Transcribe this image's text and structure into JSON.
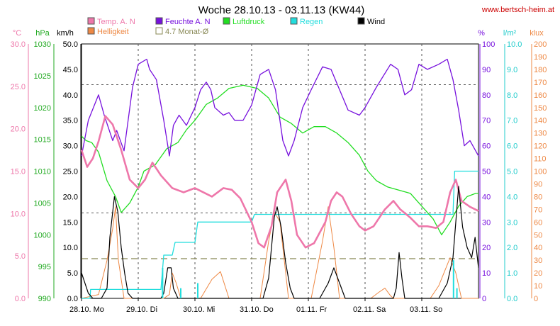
{
  "chart_data": {
    "type": "line",
    "title": "Woche 28.10.13 - 03.11.13 (KW44)",
    "source": "www.bertsch-heim.at",
    "legend": [
      {
        "key": "temp",
        "label": "Temp. A. N",
        "color": "#ee77aa"
      },
      {
        "key": "hell",
        "label": "Helligkeit",
        "color": "#ee8844"
      },
      {
        "key": "feuchte",
        "label": "Feuchte A. N",
        "color": "#7711dd"
      },
      {
        "key": "monat",
        "label": "4.7 Monat-Ø",
        "color": "#888855"
      },
      {
        "key": "luft",
        "label": "Luftdruck",
        "color": "#22dd22"
      },
      {
        "key": "regen",
        "label": "Regen",
        "color": "#22dddd"
      },
      {
        "key": "wind",
        "label": "Wind",
        "color": "#000000"
      }
    ],
    "axes": {
      "temp": {
        "unit": "°C",
        "min": 0,
        "max": 30,
        "step": 5,
        "color": "#ee77aa"
      },
      "luft": {
        "unit": "hPa",
        "min": 990,
        "max": 1030,
        "step": 5,
        "color": "#22aa22"
      },
      "wind": {
        "unit": "km/h",
        "min": 0,
        "max": 50,
        "step": 5,
        "color": "#000000"
      },
      "feuchte": {
        "unit": "%",
        "min": 0,
        "max": 100,
        "step": 10,
        "color": "#7711dd"
      },
      "regen": {
        "unit": "l/m²",
        "min": 0,
        "max": 10,
        "step": 1,
        "color": "#22cccc"
      },
      "hell": {
        "unit": "klux",
        "min": 0,
        "max": 200,
        "step": 10,
        "color": "#ee8844"
      }
    },
    "x_labels": [
      "28.10. Mo",
      "29.10. Di",
      "30.10. Mi",
      "31.10. Do",
      "01.11. Fr",
      "02.11. Sa",
      "03.11. So"
    ],
    "x_range_days": [
      0,
      7
    ],
    "reference_lines_wind": [
      42,
      16.8
    ],
    "monat_avg_wind": 7.8,
    "series": {
      "temp": [
        [
          0,
          17.5
        ],
        [
          0.1,
          15.5
        ],
        [
          0.2,
          16.5
        ],
        [
          0.3,
          18.5
        ],
        [
          0.42,
          21.5
        ],
        [
          0.55,
          20.5
        ],
        [
          0.7,
          17.5
        ],
        [
          0.85,
          14.0
        ],
        [
          1.0,
          13.0
        ],
        [
          1.12,
          14.0
        ],
        [
          1.25,
          16.0
        ],
        [
          1.4,
          14.5
        ],
        [
          1.6,
          13.0
        ],
        [
          1.8,
          12.5
        ],
        [
          2.0,
          13.0
        ],
        [
          2.15,
          12.5
        ],
        [
          2.3,
          12.0
        ],
        [
          2.5,
          13.0
        ],
        [
          2.65,
          12.8
        ],
        [
          2.8,
          11.8
        ],
        [
          3.0,
          9.0
        ],
        [
          3.12,
          6.5
        ],
        [
          3.22,
          6.0
        ],
        [
          3.35,
          8.5
        ],
        [
          3.45,
          12.5
        ],
        [
          3.6,
          14.0
        ],
        [
          3.7,
          11.5
        ],
        [
          3.8,
          7.5
        ],
        [
          3.95,
          6.0
        ],
        [
          4.1,
          6.5
        ],
        [
          4.3,
          9.0
        ],
        [
          4.4,
          11.5
        ],
        [
          4.5,
          12.5
        ],
        [
          4.6,
          12.0
        ],
        [
          4.75,
          10.0
        ],
        [
          4.9,
          8.5
        ],
        [
          5.0,
          8.0
        ],
        [
          5.15,
          8.5
        ],
        [
          5.35,
          10.5
        ],
        [
          5.5,
          11.5
        ],
        [
          5.62,
          10.5
        ],
        [
          5.8,
          9.5
        ],
        [
          5.95,
          8.5
        ],
        [
          6.1,
          8.5
        ],
        [
          6.25,
          8.3
        ],
        [
          6.38,
          9.0
        ],
        [
          6.5,
          12.5
        ],
        [
          6.6,
          14.0
        ],
        [
          6.7,
          11.5
        ],
        [
          6.85,
          10.8
        ],
        [
          7.0,
          10.3
        ]
      ],
      "feuchte": [
        [
          0,
          56
        ],
        [
          0.12,
          70
        ],
        [
          0.3,
          80
        ],
        [
          0.4,
          72
        ],
        [
          0.55,
          62
        ],
        [
          0.62,
          66
        ],
        [
          0.75,
          58
        ],
        [
          0.9,
          83
        ],
        [
          1.0,
          92
        ],
        [
          1.15,
          94
        ],
        [
          1.2,
          90
        ],
        [
          1.32,
          86
        ],
        [
          1.45,
          70
        ],
        [
          1.55,
          56
        ],
        [
          1.62,
          68
        ],
        [
          1.72,
          72
        ],
        [
          1.85,
          68
        ],
        [
          2.0,
          75
        ],
        [
          2.1,
          82
        ],
        [
          2.2,
          85
        ],
        [
          2.28,
          82
        ],
        [
          2.35,
          75
        ],
        [
          2.5,
          72
        ],
        [
          2.6,
          73
        ],
        [
          2.7,
          70
        ],
        [
          2.85,
          70
        ],
        [
          3.0,
          76
        ],
        [
          3.15,
          88
        ],
        [
          3.3,
          90
        ],
        [
          3.42,
          82
        ],
        [
          3.55,
          62
        ],
        [
          3.65,
          56
        ],
        [
          3.75,
          62
        ],
        [
          3.9,
          75
        ],
        [
          4.05,
          82
        ],
        [
          4.25,
          91
        ],
        [
          4.4,
          90
        ],
        [
          4.55,
          82
        ],
        [
          4.7,
          74
        ],
        [
          4.9,
          72
        ],
        [
          5.0,
          75
        ],
        [
          5.2,
          83
        ],
        [
          5.45,
          92
        ],
        [
          5.58,
          90
        ],
        [
          5.7,
          80
        ],
        [
          5.82,
          82
        ],
        [
          5.95,
          92
        ],
        [
          6.1,
          90
        ],
        [
          6.3,
          92
        ],
        [
          6.45,
          94
        ],
        [
          6.55,
          86
        ],
        [
          6.65,
          74
        ],
        [
          6.75,
          60
        ],
        [
          6.85,
          62
        ],
        [
          6.95,
          58
        ],
        [
          7.0,
          56
        ]
      ],
      "luft": [
        [
          0,
          1015.5
        ],
        [
          0.08,
          1014.8
        ],
        [
          0.18,
          1014.5
        ],
        [
          0.3,
          1013.0
        ],
        [
          0.45,
          1008.5
        ],
        [
          0.6,
          1006.0
        ],
        [
          0.7,
          1003.5
        ],
        [
          0.85,
          1005.0
        ],
        [
          1.0,
          1007.5
        ],
        [
          1.1,
          1010.0
        ],
        [
          1.3,
          1011.0
        ],
        [
          1.5,
          1013.5
        ],
        [
          1.7,
          1014.5
        ],
        [
          1.85,
          1016.5
        ],
        [
          2.0,
          1018.0
        ],
        [
          2.2,
          1020.5
        ],
        [
          2.4,
          1021.5
        ],
        [
          2.6,
          1023.0
        ],
        [
          2.85,
          1023.5
        ],
        [
          3.1,
          1023.0
        ],
        [
          3.3,
          1021.5
        ],
        [
          3.5,
          1018.5
        ],
        [
          3.7,
          1017.5
        ],
        [
          3.9,
          1016.0
        ],
        [
          4.1,
          1017.0
        ],
        [
          4.3,
          1017.0
        ],
        [
          4.5,
          1016.0
        ],
        [
          4.7,
          1014.5
        ],
        [
          4.9,
          1012.5
        ],
        [
          5.05,
          1010.0
        ],
        [
          5.2,
          1008.5
        ],
        [
          5.4,
          1007.5
        ],
        [
          5.6,
          1007.0
        ],
        [
          5.8,
          1006.5
        ],
        [
          6.0,
          1004.5
        ],
        [
          6.2,
          1002.5
        ],
        [
          6.35,
          1000.0
        ],
        [
          6.5,
          1002.0
        ],
        [
          6.65,
          1004.5
        ],
        [
          6.8,
          1006.0
        ],
        [
          6.95,
          1006.5
        ],
        [
          7.0,
          1006.5
        ]
      ],
      "regen": [
        [
          0,
          0
        ],
        [
          0.15,
          0
        ],
        [
          0.16,
          0.35
        ],
        [
          1.4,
          0.35
        ],
        [
          1.45,
          1.7
        ],
        [
          1.6,
          1.7
        ],
        [
          1.65,
          2.2
        ],
        [
          2.0,
          2.2
        ],
        [
          2.05,
          3.0
        ],
        [
          3.0,
          3.0
        ],
        [
          3.05,
          3.3
        ],
        [
          6.55,
          3.3
        ],
        [
          6.58,
          5.0
        ],
        [
          7.0,
          5.0
        ]
      ],
      "regen_marks": [
        [
          1.43,
          1.2
        ],
        [
          1.75,
          0.4
        ],
        [
          2.05,
          0.6
        ],
        [
          6.56,
          1.5
        ],
        [
          6.62,
          0.4
        ]
      ],
      "hell": [
        [
          0,
          0
        ],
        [
          0.3,
          3
        ],
        [
          0.45,
          30
        ],
        [
          0.55,
          55
        ],
        [
          0.6,
          72
        ],
        [
          0.65,
          30
        ],
        [
          0.75,
          0
        ],
        [
          1.45,
          0
        ],
        [
          1.55,
          3
        ],
        [
          1.6,
          20
        ],
        [
          1.67,
          12
        ],
        [
          1.75,
          0
        ],
        [
          2.1,
          0
        ],
        [
          2.3,
          15
        ],
        [
          2.45,
          21
        ],
        [
          2.6,
          0
        ],
        [
          3.15,
          0
        ],
        [
          3.3,
          45
        ],
        [
          3.4,
          68
        ],
        [
          3.5,
          60
        ],
        [
          3.65,
          0
        ],
        [
          4.05,
          0
        ],
        [
          4.25,
          45
        ],
        [
          4.35,
          72
        ],
        [
          4.45,
          40
        ],
        [
          4.55,
          0
        ],
        [
          5.1,
          0
        ],
        [
          5.25,
          5
        ],
        [
          5.35,
          8
        ],
        [
          5.45,
          2
        ],
        [
          5.5,
          0
        ],
        [
          6.15,
          0
        ],
        [
          6.3,
          10
        ],
        [
          6.5,
          32
        ],
        [
          6.6,
          20
        ],
        [
          6.7,
          0
        ],
        [
          7.0,
          0
        ]
      ],
      "wind": [
        [
          0,
          5
        ],
        [
          0.12,
          1
        ],
        [
          0.2,
          0
        ],
        [
          0.35,
          0
        ],
        [
          0.45,
          2
        ],
        [
          0.5,
          12
        ],
        [
          0.58,
          20
        ],
        [
          0.64,
          17
        ],
        [
          0.7,
          10
        ],
        [
          0.76,
          5
        ],
        [
          0.82,
          1
        ],
        [
          0.9,
          0
        ],
        [
          1.4,
          0
        ],
        [
          1.45,
          1
        ],
        [
          1.52,
          6
        ],
        [
          1.58,
          6
        ],
        [
          1.62,
          2
        ],
        [
          1.7,
          0
        ],
        [
          3.2,
          0
        ],
        [
          3.3,
          4
        ],
        [
          3.4,
          16
        ],
        [
          3.45,
          18
        ],
        [
          3.52,
          14
        ],
        [
          3.6,
          7
        ],
        [
          3.68,
          2
        ],
        [
          3.75,
          0
        ],
        [
          4.2,
          0
        ],
        [
          4.35,
          3
        ],
        [
          4.45,
          6
        ],
        [
          4.55,
          3
        ],
        [
          4.65,
          0
        ],
        [
          5.5,
          0
        ],
        [
          5.55,
          2
        ],
        [
          5.6,
          9
        ],
        [
          5.65,
          4
        ],
        [
          5.7,
          0
        ],
        [
          6.3,
          0
        ],
        [
          6.45,
          3
        ],
        [
          6.55,
          8
        ],
        [
          6.6,
          15
        ],
        [
          6.65,
          22
        ],
        [
          6.72,
          14
        ],
        [
          6.8,
          10
        ],
        [
          6.88,
          8
        ],
        [
          6.94,
          12
        ],
        [
          7.0,
          6
        ]
      ]
    }
  }
}
